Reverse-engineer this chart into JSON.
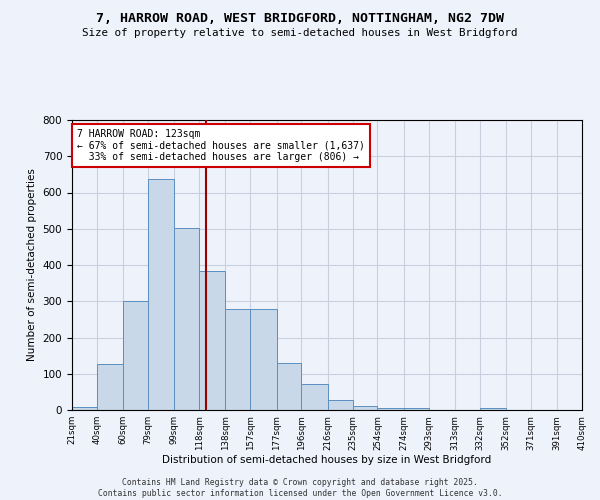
{
  "title_line1": "7, HARROW ROAD, WEST BRIDGFORD, NOTTINGHAM, NG2 7DW",
  "title_line2": "Size of property relative to semi-detached houses in West Bridgford",
  "xlabel": "Distribution of semi-detached houses by size in West Bridgford",
  "ylabel": "Number of semi-detached properties",
  "property_label": "7 HARROW ROAD: 123sqm",
  "pct_smaller": 67,
  "count_smaller": 1637,
  "pct_larger": 33,
  "count_larger": 806,
  "bin_edges": [
    21,
    40,
    60,
    79,
    99,
    118,
    138,
    157,
    177,
    196,
    216,
    235,
    254,
    274,
    293,
    313,
    332,
    352,
    371,
    391,
    410
  ],
  "bin_counts": [
    8,
    128,
    302,
    637,
    503,
    384,
    279,
    279,
    130,
    72,
    27,
    11,
    5,
    5,
    0,
    0,
    5,
    0,
    0,
    0
  ],
  "bar_color": "#c8d8e8",
  "bar_edge_color": "#5a8fc0",
  "vline_x": 123,
  "vline_color": "#990000",
  "annotation_box_color": "#ffffff",
  "annotation_box_edge_color": "#cc0000",
  "grid_color": "#c8d0e0",
  "background_color": "#eef2fb",
  "ylim": [
    0,
    800
  ],
  "yticks": [
    0,
    100,
    200,
    300,
    400,
    500,
    600,
    700,
    800
  ],
  "footnote_line1": "Contains HM Land Registry data © Crown copyright and database right 2025.",
  "footnote_line2": "Contains public sector information licensed under the Open Government Licence v3.0."
}
